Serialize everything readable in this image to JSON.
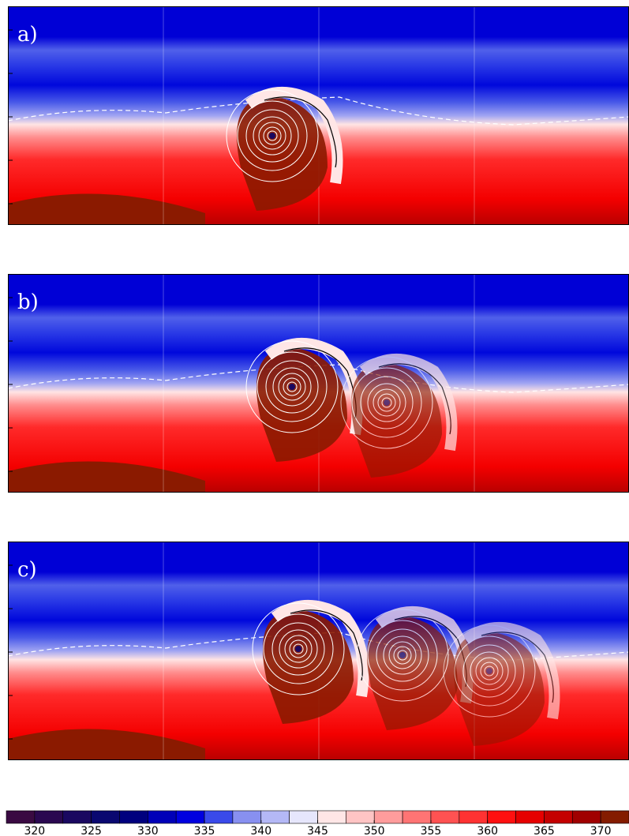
{
  "panels": [
    {
      "label": "a)"
    },
    {
      "label": "b)"
    },
    {
      "label": "c)"
    }
  ],
  "colorbar": {
    "levels": [
      317.5,
      320,
      322.5,
      325,
      327.5,
      330,
      332.5,
      335,
      337.5,
      340,
      342.5,
      345,
      347.5,
      350,
      352.5,
      355,
      357.5,
      360,
      362.5,
      365,
      367.5,
      370,
      372.5
    ],
    "colors": [
      "#3a0a42",
      "#2a0850",
      "#1a0860",
      "#0a0870",
      "#00007e",
      "#0000b8",
      "#0000e0",
      "#3a4aea",
      "#8890f0",
      "#b4b8f6",
      "#e6e6fc",
      "#ffe6e6",
      "#ffc4c4",
      "#ff9c9c",
      "#ff7474",
      "#ff5252",
      "#ff3232",
      "#ff1010",
      "#e60000",
      "#c40000",
      "#a00000",
      "#841c00"
    ],
    "ticks": [
      320,
      325,
      330,
      335,
      340,
      345,
      350,
      355,
      360,
      365,
      370
    ]
  }
}
